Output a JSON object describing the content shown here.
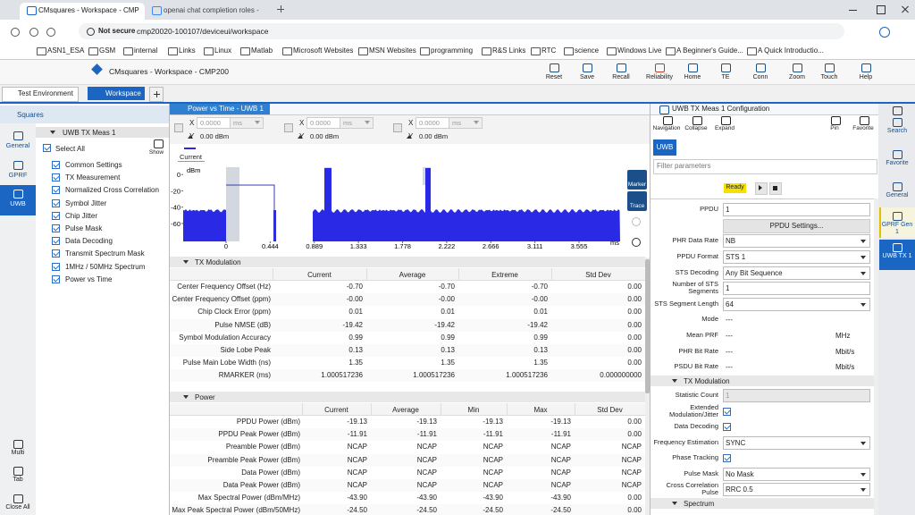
{
  "browser": {
    "tabs": [
      "CMsquares - Workspace - CMP",
      "openai chat completion roles - "
    ],
    "security": "Not secure",
    "url": "cmp20020-100107/deviceui/workspace",
    "bookmarks": [
      "ASN1_ESA",
      "GSM",
      "internal",
      "Links",
      "Linux",
      "Matlab",
      "Microsoft Websites",
      "MSN Websites",
      "programming",
      "R&S Links",
      "RTC",
      "science",
      "Windows Live",
      "A Beginner's Guide...",
      "A Quick Introductio..."
    ]
  },
  "app": {
    "title": "CMsquares - Workspace - CMP200",
    "tools": [
      "Reset",
      "Save",
      "Recall",
      "Reliability",
      "Home",
      "TE",
      "Conn",
      "Zoom",
      "Touch",
      "Help"
    ],
    "tabs": [
      "Test Environment",
      "Workspace"
    ]
  },
  "left_nav": {
    "header": "Squares",
    "items": [
      "General",
      "GPRF",
      "UWB"
    ],
    "bottom": [
      "Multi",
      "Tab",
      "Close All"
    ]
  },
  "tree": {
    "root": "UWB TX Meas 1",
    "select_all": "Select All",
    "show": "Show",
    "items": [
      "Common Settings",
      "TX Measurement",
      "Normalized Cross Correlation",
      "Symbol Jitter",
      "Chip Jitter",
      "Pulse Mask",
      "Data Decoding",
      "Transmit Spectrum Mask",
      "1MHz / 50MHz Spectrum",
      "Power vs Time"
    ]
  },
  "plot_panel": {
    "title": "Power vs Time - UWB 1",
    "x_label": "X",
    "y_label": "Y",
    "markers": [
      {
        "x": "0.0000",
        "unit": "ms",
        "y": "0.00 dBm"
      },
      {
        "x": "0.0000",
        "unit": "ms",
        "y": "0.00 dBm"
      },
      {
        "x": "0.0000",
        "unit": "ms",
        "y": "0.00 dBm"
      }
    ],
    "legend": "Current",
    "y_unit": "dBm",
    "x_unit": "ms",
    "ylim": [
      -82,
      9
    ],
    "yticks": [
      0,
      -20,
      -40,
      -60
    ],
    "xlim": [
      -0.432,
      3.978
    ],
    "xticks": [
      0,
      0.444,
      0.889,
      1.333,
      1.778,
      2.222,
      2.666,
      3.111,
      3.555
    ],
    "side": [
      "Marker",
      "Trace"
    ]
  },
  "tx_table": {
    "title": "TX Modulation",
    "columns": [
      "Current",
      "Average",
      "Extreme",
      "Std Dev"
    ],
    "rows": [
      {
        "label": "Center Frequency Offset (Hz)",
        "values": [
          "-0.70",
          "-0.70",
          "-0.70",
          "0.00"
        ]
      },
      {
        "label": "Center Frequency Offset (ppm)",
        "values": [
          "-0.00",
          "-0.00",
          "-0.00",
          "0.00"
        ]
      },
      {
        "label": "Chip Clock Error (ppm)",
        "values": [
          "0.01",
          "0.01",
          "0.01",
          "0.00"
        ]
      },
      {
        "label": "Pulse NMSE (dB)",
        "values": [
          "-19.42",
          "-19.42",
          "-19.42",
          "0.00"
        ]
      },
      {
        "label": "Symbol Modulation Accuracy",
        "values": [
          "0.99",
          "0.99",
          "0.99",
          "0.00"
        ]
      },
      {
        "label": "Side Lobe Peak",
        "values": [
          "0.13",
          "0.13",
          "0.13",
          "0.00"
        ]
      },
      {
        "label": "Pulse Main Lobe Width (ns)",
        "values": [
          "1.35",
          "1.35",
          "1.35",
          "0.00"
        ]
      },
      {
        "label": "RMARKER (ms)",
        "values": [
          "1.000517236",
          "1.000517236",
          "1.000517236",
          "0.000000000"
        ]
      }
    ]
  },
  "power_table": {
    "title": "Power",
    "columns": [
      "Current",
      "Average",
      "Min",
      "Max",
      "Std Dev"
    ],
    "rows": [
      {
        "label": "PPDU Power (dBm)",
        "values": [
          "-19.13",
          "-19.13",
          "-19.13",
          "-19.13",
          "0.00"
        ]
      },
      {
        "label": "PPDU Peak Power (dBm)",
        "values": [
          "-11.91",
          "-11.91",
          "-11.91",
          "-11.91",
          "0.00"
        ]
      },
      {
        "label": "Preamble Power (dBm)",
        "values": [
          "NCAP",
          "NCAP",
          "NCAP",
          "NCAP",
          "NCAP"
        ]
      },
      {
        "label": "Preamble Peak Power (dBm)",
        "values": [
          "NCAP",
          "NCAP",
          "NCAP",
          "NCAP",
          "NCAP"
        ]
      },
      {
        "label": "Data Power (dBm)",
        "values": [
          "NCAP",
          "NCAP",
          "NCAP",
          "NCAP",
          "NCAP"
        ]
      },
      {
        "label": "Data Peak Power (dBm)",
        "values": [
          "NCAP",
          "NCAP",
          "NCAP",
          "NCAP",
          "NCAP"
        ]
      },
      {
        "label": "Max Spectral Power (dBm/MHz)",
        "values": [
          "-43.90",
          "-43.90",
          "-43.90",
          "-43.90",
          "0.00"
        ]
      },
      {
        "label": "Max Peak Spectral Power (dBm/50MHz)",
        "values": [
          "-24.50",
          "-24.50",
          "-24.50",
          "-24.50",
          "0.00"
        ]
      }
    ]
  },
  "config": {
    "title": "UWB TX Meas 1 Configuration",
    "toolbar": [
      "Navigation",
      "Collapse",
      "Expand",
      "Pin",
      "Favorite"
    ],
    "tab": "UWB",
    "filter": "Filter parameters",
    "status": "Ready",
    "rows": [
      {
        "label": "PPDU",
        "value": "1",
        "kind": "input"
      },
      {
        "value": "PPDU Settings...",
        "kind": "button"
      },
      {
        "label": "PHR Data Rate",
        "value": "NB",
        "kind": "select"
      },
      {
        "label": "PPDU Format",
        "value": "STS 1",
        "kind": "select"
      },
      {
        "label": "STS Decoding",
        "value": "Any Bit Sequence",
        "kind": "select"
      },
      {
        "label": "Number of STS Segments",
        "value": "1",
        "kind": "input"
      },
      {
        "label": "STS Segment Length",
        "value": "64",
        "kind": "select"
      },
      {
        "label": "Mode",
        "value": "---",
        "kind": "text"
      },
      {
        "label": "Mean PRF",
        "value": "---",
        "unit": "MHz",
        "kind": "text"
      },
      {
        "label": "PHR Bit Rate",
        "value": "---",
        "unit": "Mbit/s",
        "kind": "text"
      },
      {
        "label": "PSDU Bit Rate",
        "value": "---",
        "unit": "Mbit/s",
        "kind": "text"
      },
      {
        "label": "TX Modulation",
        "kind": "section"
      },
      {
        "label": "Statistic Count",
        "value": "1",
        "kind": "disabled"
      },
      {
        "label": "Extended Modulation/Jitter",
        "kind": "check"
      },
      {
        "label": "Data Decoding",
        "kind": "check"
      },
      {
        "label": "Frequency Estimation",
        "value": "SYNC",
        "kind": "select"
      },
      {
        "label": "Phase Tracking",
        "kind": "check"
      },
      {
        "label": "Pulse Mask",
        "value": "No Mask",
        "kind": "select"
      },
      {
        "label": "Cross Correlation Pulse",
        "value": "RRC 0.5",
        "kind": "select"
      },
      {
        "label": "Spectrum",
        "kind": "section"
      }
    ]
  },
  "right_nav": [
    "Search",
    "Favorite",
    "General",
    "GPRF Gen 1",
    "UWB TX 1"
  ]
}
